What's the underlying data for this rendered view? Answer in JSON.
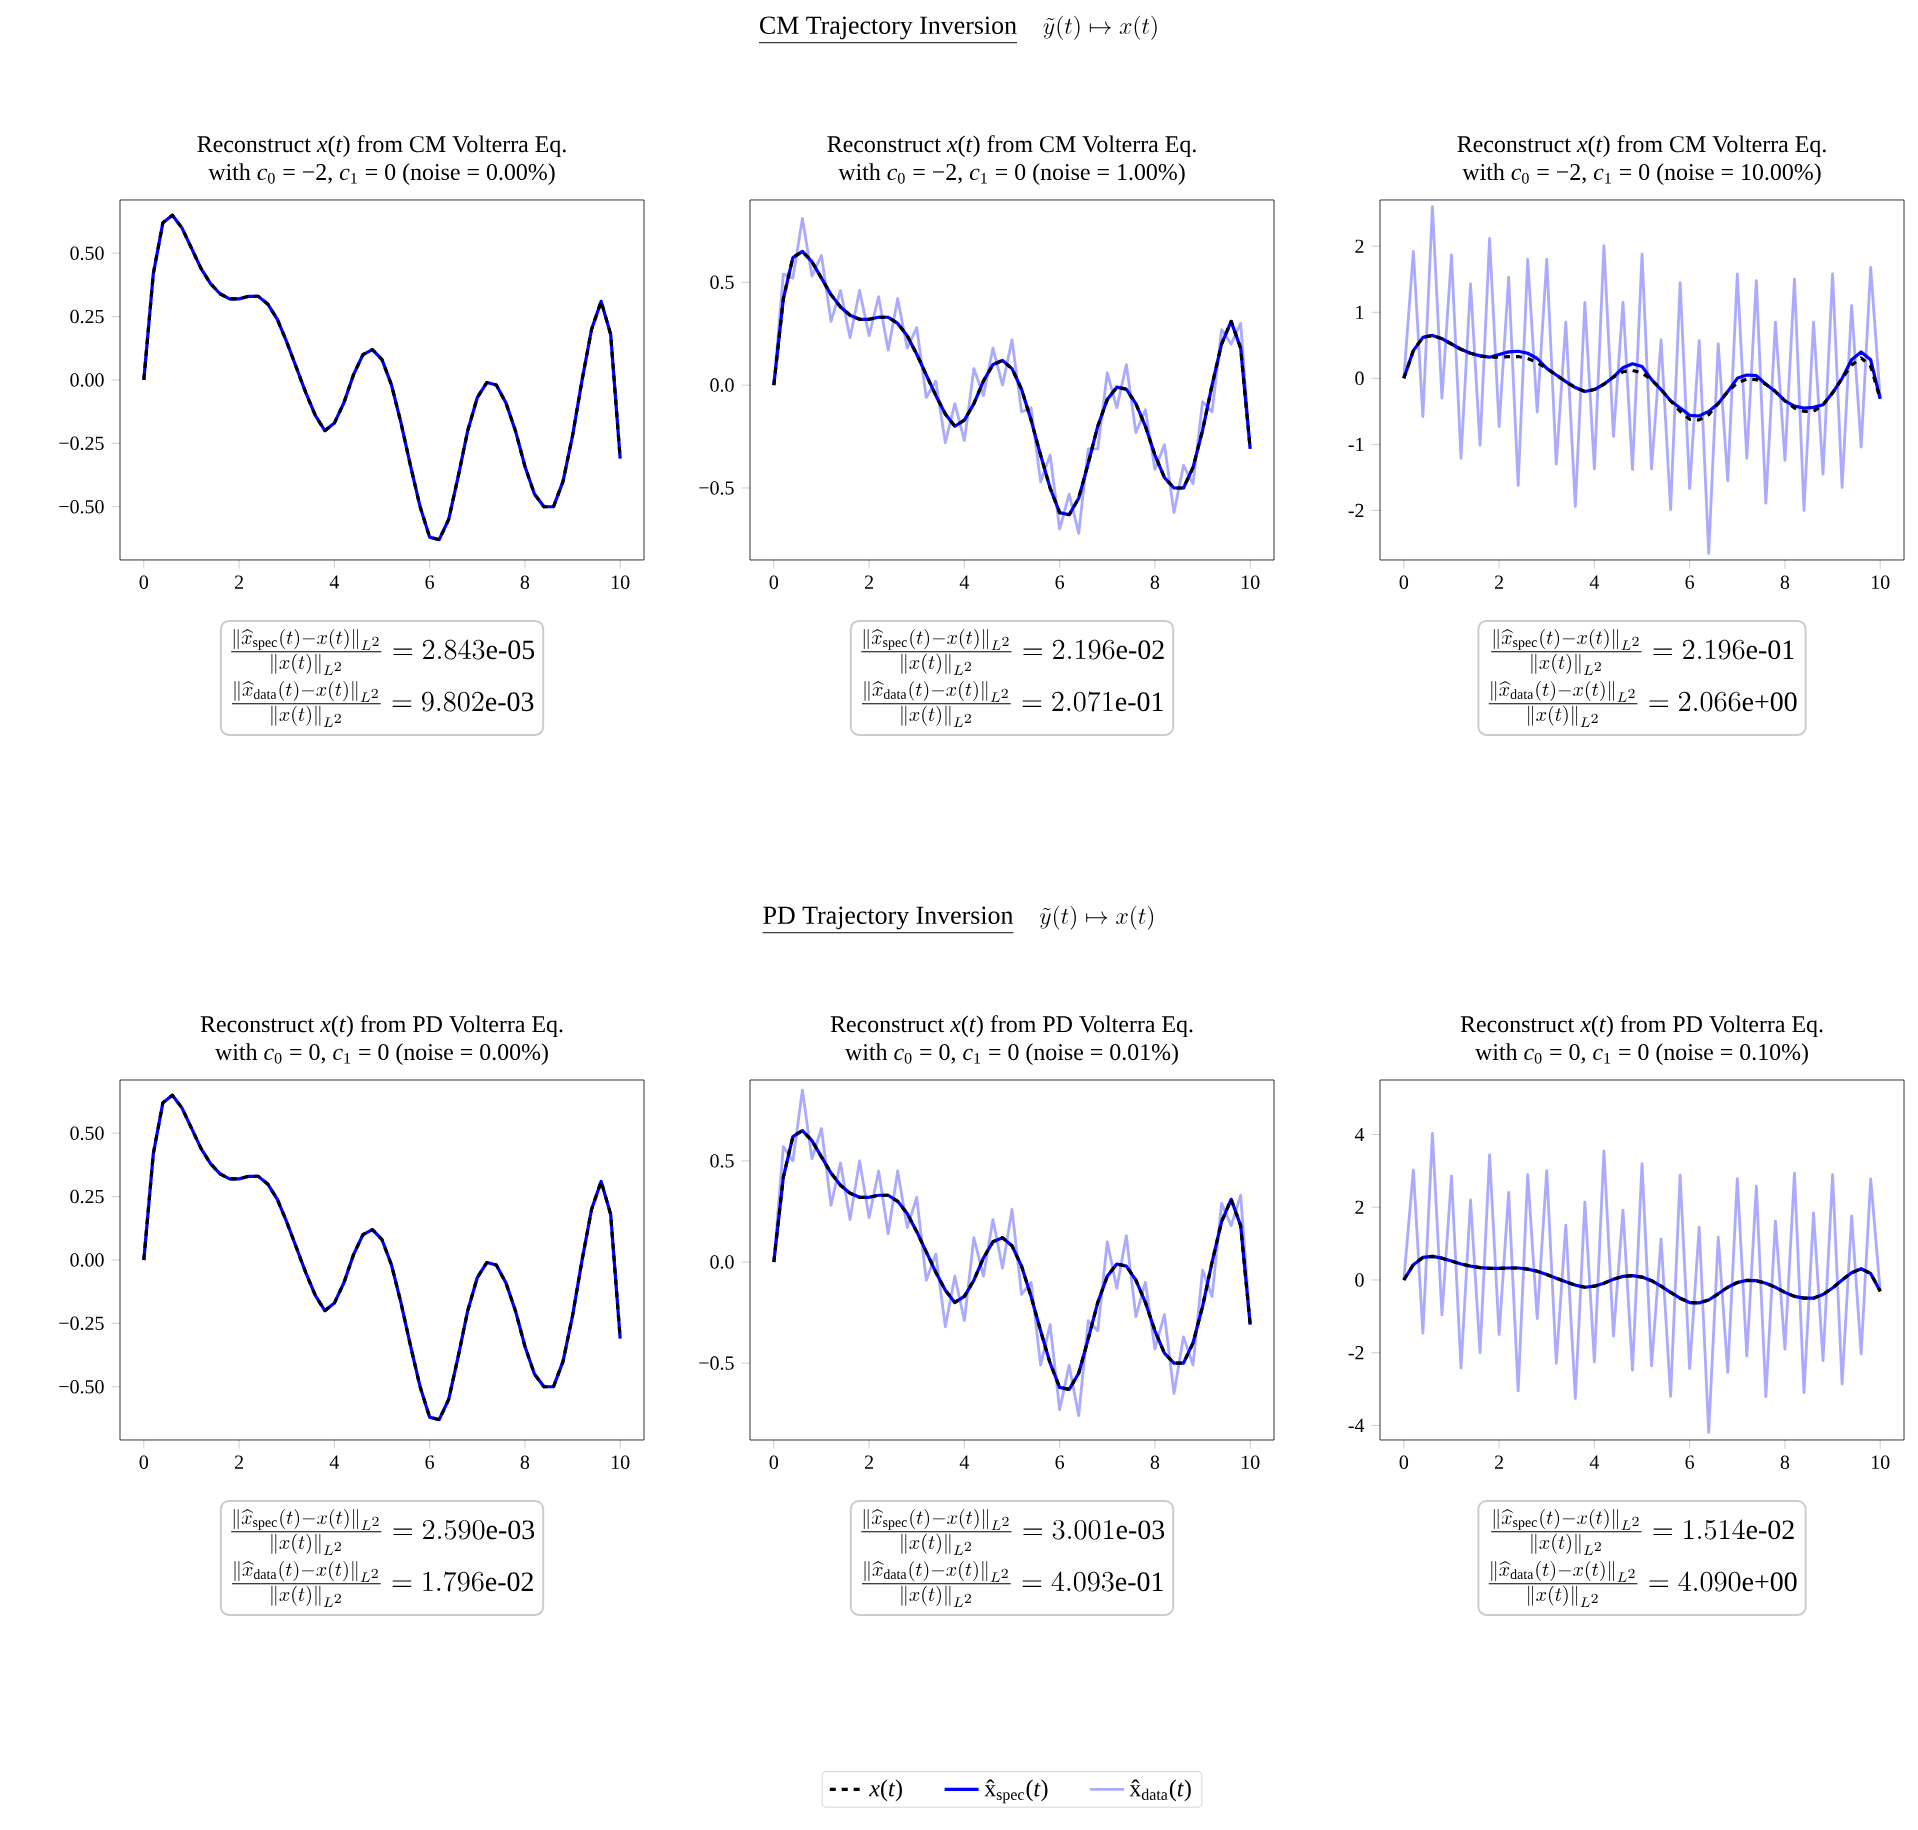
{
  "chart_data": [
    {
      "type": "other",
      "title": "CM Trajectory Inversion",
      "annotations": [
        "\\tilde{y}(t) \\mapsto x(t)"
      ]
    },
    {
      "type": "line",
      "title": "Reconstruct *x*(*t*) from CM Volterra Eq.",
      "subtitle": "with *c*$_{0}$ = −2, *c*$_{1}$ = 0 (noise = 0.00%)",
      "x": [
        0,
        0.2,
        0.4,
        0.6,
        0.8,
        1,
        1.2,
        1.4,
        1.6,
        1.8,
        2,
        2.2,
        2.4,
        2.6,
        2.8,
        3,
        3.2,
        3.4,
        3.6,
        3.8,
        4,
        4.2,
        4.4,
        4.6,
        4.8,
        5,
        5.2,
        5.4,
        5.6,
        5.8,
        6,
        6.2,
        6.4,
        6.6,
        6.8,
        7,
        7.2,
        7.4,
        7.6,
        7.8,
        8,
        8.2,
        8.4,
        8.6,
        8.8,
        9,
        9.2,
        9.4,
        9.6,
        9.8,
        10
      ],
      "series": [
        {
          "color": "#000000",
          "line_style": "dashed",
          "values": [
            0,
            0.42,
            0.62,
            0.65,
            0.6,
            0.52,
            0.44,
            0.38,
            0.34,
            0.32,
            0.32,
            0.33,
            0.33,
            0.3,
            0.24,
            0.15,
            0.05,
            -0.05,
            -0.14,
            -0.2,
            -0.17,
            -0.09,
            0.02,
            0.1,
            0.12,
            0.08,
            -0.02,
            -0.17,
            -0.34,
            -0.5,
            -0.62,
            -0.63,
            -0.55,
            -0.38,
            -0.2,
            -0.07,
            -0.01,
            -0.02,
            -0.09,
            -0.2,
            -0.34,
            -0.45,
            -0.5,
            -0.5,
            -0.4,
            -0.22,
            0,
            0.2,
            0.31,
            0.18,
            -0.31
          ]
        },
        {
          "color": "#0000ff",
          "line_style": "solid",
          "values": [
            0,
            0.42,
            0.62,
            0.65,
            0.6,
            0.52,
            0.44,
            0.38,
            0.34,
            0.32,
            0.32,
            0.33,
            0.33,
            0.3,
            0.24,
            0.15,
            0.05,
            -0.05,
            -0.14,
            -0.2,
            -0.17,
            -0.09,
            0.02,
            0.1,
            0.12,
            0.08,
            -0.02,
            -0.17,
            -0.34,
            -0.5,
            -0.62,
            -0.63,
            -0.55,
            -0.38,
            -0.2,
            -0.07,
            -0.01,
            -0.02,
            -0.09,
            -0.2,
            -0.34,
            -0.45,
            -0.5,
            -0.5,
            -0.4,
            -0.22,
            0,
            0.2,
            0.31,
            0.18,
            -0.31
          ]
        }
      ],
      "xlim": [
        -0.5,
        10.5
      ],
      "ylim": [
        -0.71,
        0.71
      ],
      "xticks": [
        0,
        2,
        4,
        6,
        8,
        10
      ],
      "yticks": [
        {
          "value": -0.5,
          "label": "−0.50"
        },
        {
          "value": -0.25,
          "label": "−0.25"
        },
        {
          "value": 0,
          "label": "0.00"
        },
        {
          "value": 0.25,
          "label": "0.25"
        },
        {
          "value": 0.5,
          "label": "0.50"
        }
      ],
      "annotations": [
        "\\frac{\\|\\widehat{x}_{\\mathrm{spec}}(t)-x(t)\\|_{L^2}}{\\|x(t)\\|_{L^2}} = 2.843\\text{e-05}",
        "\\frac{\\|\\widehat{x}_{\\mathrm{data}}(t)-x(t)\\|_{L^2}}{\\|x(t)\\|_{L^2}} = 9.802\\text{e-03}"
      ]
    },
    {
      "type": "line",
      "title": "Reconstruct *x*(*t*) from CM Volterra Eq.",
      "subtitle": "with *c*$_{0}$ = −2, *c*$_{1}$ = 0 (noise = 1.00%)",
      "x": [
        0,
        0.2,
        0.4,
        0.6,
        0.8,
        1,
        1.2,
        1.4,
        1.6,
        1.8,
        2,
        2.2,
        2.4,
        2.6,
        2.8,
        3,
        3.2,
        3.4,
        3.6,
        3.8,
        4,
        4.2,
        4.4,
        4.6,
        4.8,
        5,
        5.2,
        5.4,
        5.6,
        5.8,
        6,
        6.2,
        6.4,
        6.6,
        6.8,
        7,
        7.2,
        7.4,
        7.6,
        7.8,
        8,
        8.2,
        8.4,
        8.6,
        8.8,
        9,
        9.2,
        9.4,
        9.6,
        9.8,
        10
      ],
      "series": [
        {
          "color": "#000000",
          "line_style": "dashed",
          "values": [
            0,
            0.42,
            0.62,
            0.65,
            0.6,
            0.52,
            0.44,
            0.38,
            0.34,
            0.32,
            0.32,
            0.33,
            0.33,
            0.3,
            0.24,
            0.15,
            0.05,
            -0.05,
            -0.14,
            -0.2,
            -0.17,
            -0.09,
            0.02,
            0.1,
            0.12,
            0.08,
            -0.02,
            -0.17,
            -0.34,
            -0.5,
            -0.62,
            -0.63,
            -0.55,
            -0.38,
            -0.2,
            -0.07,
            -0.01,
            -0.02,
            -0.09,
            -0.2,
            -0.34,
            -0.45,
            -0.5,
            -0.5,
            -0.4,
            -0.22,
            0,
            0.2,
            0.31,
            0.18,
            -0.31
          ]
        },
        {
          "color": "#0000ff",
          "line_style": "solid",
          "values": [
            0,
            0.42,
            0.62,
            0.65,
            0.6,
            0.52,
            0.44,
            0.38,
            0.34,
            0.32,
            0.32,
            0.33,
            0.33,
            0.3,
            0.24,
            0.15,
            0.05,
            -0.05,
            -0.14,
            -0.2,
            -0.17,
            -0.09,
            0.02,
            0.1,
            0.12,
            0.08,
            -0.02,
            -0.17,
            -0.34,
            -0.5,
            -0.62,
            -0.63,
            -0.55,
            -0.38,
            -0.2,
            -0.07,
            -0.01,
            -0.02,
            -0.09,
            -0.2,
            -0.34,
            -0.45,
            -0.5,
            -0.5,
            -0.4,
            -0.22,
            0,
            0.2,
            0.31,
            0.18,
            -0.31
          ]
        },
        {
          "color": "#aaaaff",
          "line_style": "solid",
          "values": [
            0,
            0.54,
            0.52,
            0.81,
            0.53,
            0.63,
            0.31,
            0.46,
            0.23,
            0.46,
            0.24,
            0.43,
            0.17,
            0.42,
            0.18,
            0.28,
            -0.06,
            0.02,
            -0.28,
            -0.09,
            -0.27,
            0.08,
            -0.05,
            0.18,
            0,
            0.22,
            -0.13,
            -0.11,
            -0.47,
            -0.34,
            -0.7,
            -0.53,
            -0.72,
            -0.31,
            -0.31,
            0.06,
            -0.11,
            0.1,
            -0.23,
            -0.12,
            -0.41,
            -0.29,
            -0.62,
            -0.39,
            -0.48,
            -0.08,
            -0.13,
            0.27,
            0.2,
            0.3,
            -0.31
          ]
        }
      ],
      "xlim": [
        -0.5,
        10.5
      ],
      "ylim": [
        -0.85,
        0.9
      ],
      "xticks": [
        0,
        2,
        4,
        6,
        8,
        10
      ],
      "yticks": [
        {
          "value": -0.5,
          "label": "−0.5"
        },
        {
          "value": 0,
          "label": "0.0"
        },
        0.5
      ],
      "annotations": [
        "\\frac{\\|\\widehat{x}_{\\mathrm{spec}}(t)-x(t)\\|_{L^2}}{\\|x(t)\\|_{L^2}} = 2.196\\text{e-02}",
        "\\frac{\\|\\widehat{x}_{\\mathrm{data}}(t)-x(t)\\|_{L^2}}{\\|x(t)\\|_{L^2}} = 2.071\\text{e-01}"
      ]
    },
    {
      "type": "line",
      "title": "Reconstruct *x*(*t*) from CM Volterra Eq.",
      "subtitle": "with *c*$_{0}$ = −2, *c*$_{1}$ = 0 (noise = 10.00%)",
      "x": [
        0,
        0.2,
        0.4,
        0.6,
        0.8,
        1,
        1.2,
        1.4,
        1.6,
        1.8,
        2,
        2.2,
        2.4,
        2.6,
        2.8,
        3,
        3.2,
        3.4,
        3.6,
        3.8,
        4,
        4.2,
        4.4,
        4.6,
        4.8,
        5,
        5.2,
        5.4,
        5.6,
        5.8,
        6,
        6.2,
        6.4,
        6.6,
        6.8,
        7,
        7.2,
        7.4,
        7.6,
        7.8,
        8,
        8.2,
        8.4,
        8.6,
        8.8,
        9,
        9.2,
        9.4,
        9.6,
        9.8,
        10
      ],
      "series": [
        {
          "color": "#000000",
          "line_style": "dashed",
          "values": [
            0,
            0.42,
            0.62,
            0.65,
            0.6,
            0.52,
            0.44,
            0.38,
            0.34,
            0.32,
            0.32,
            0.33,
            0.33,
            0.3,
            0.24,
            0.15,
            0.05,
            -0.05,
            -0.14,
            -0.2,
            -0.17,
            -0.09,
            0.02,
            0.1,
            0.12,
            0.08,
            -0.02,
            -0.17,
            -0.34,
            -0.5,
            -0.62,
            -0.63,
            -0.55,
            -0.38,
            -0.2,
            -0.07,
            -0.01,
            -0.02,
            -0.09,
            -0.2,
            -0.34,
            -0.45,
            -0.5,
            -0.5,
            -0.4,
            -0.22,
            0,
            0.2,
            0.31,
            0.18,
            -0.31
          ]
        },
        {
          "color": "#0000ff",
          "line_style": "solid",
          "values": [
            0,
            0.42,
            0.62,
            0.65,
            0.6,
            0.52,
            0.44,
            0.38,
            0.34,
            0.32,
            0.36,
            0.4,
            0.41,
            0.38,
            0.3,
            0.15,
            0.05,
            -0.05,
            -0.14,
            -0.2,
            -0.17,
            -0.09,
            0.02,
            0.16,
            0.22,
            0.18,
            -0.02,
            -0.17,
            -0.34,
            -0.45,
            -0.56,
            -0.57,
            -0.5,
            -0.38,
            -0.2,
            0,
            0.05,
            0.04,
            -0.09,
            -0.2,
            -0.34,
            -0.42,
            -0.45,
            -0.44,
            -0.4,
            -0.22,
            0,
            0.28,
            0.4,
            0.28,
            -0.31
          ]
        },
        {
          "color": "#aaaaff",
          "line_style": "solid",
          "values": [
            0,
            1.92,
            -0.58,
            2.6,
            -0.3,
            1.87,
            -1.21,
            1.43,
            -1.01,
            2.12,
            -0.73,
            1.53,
            -1.62,
            1.8,
            -0.51,
            1.8,
            -1.3,
            0.85,
            -1.94,
            1.15,
            -1.37,
            2.01,
            -0.88,
            1.15,
            -1.38,
            1.88,
            -1.37,
            0.58,
            -1.99,
            1.45,
            -1.67,
            0.57,
            -2.65,
            0.52,
            -1.55,
            1.58,
            -1.21,
            1.48,
            -1.89,
            0.85,
            -1.24,
            1.5,
            -2,
            0.85,
            -1.45,
            1.58,
            -1.65,
            1.1,
            -1.04,
            1.68,
            -0.31
          ]
        }
      ],
      "xlim": [
        -0.5,
        10.5
      ],
      "ylim": [
        -2.75,
        2.7
      ],
      "xticks": [
        0,
        2,
        4,
        6,
        8,
        10
      ],
      "yticks": [
        -2,
        -1,
        0,
        1,
        2
      ],
      "annotations": [
        "\\frac{\\|\\widehat{x}_{\\mathrm{spec}}(t)-x(t)\\|_{L^2}}{\\|x(t)\\|_{L^2}} = 2.196\\text{e-01}",
        "\\frac{\\|\\widehat{x}_{\\mathrm{data}}(t)-x(t)\\|_{L^2}}{\\|x(t)\\|_{L^2}} = 2.066\\text{e+00}"
      ]
    },
    {
      "type": "other",
      "title": "PD Trajectory Inversion",
      "annotations": [
        "\\tilde{y}(t) \\mapsto x(t)"
      ]
    },
    {
      "type": "line",
      "title": "Reconstruct *x*(*t*) from PD Volterra Eq.",
      "subtitle": "with *c*$_{0}$ = 0, *c*$_{1}$ = 0 (noise = 0.00%)",
      "x": [
        0,
        0.2,
        0.4,
        0.6,
        0.8,
        1,
        1.2,
        1.4,
        1.6,
        1.8,
        2,
        2.2,
        2.4,
        2.6,
        2.8,
        3,
        3.2,
        3.4,
        3.6,
        3.8,
        4,
        4.2,
        4.4,
        4.6,
        4.8,
        5,
        5.2,
        5.4,
        5.6,
        5.8,
        6,
        6.2,
        6.4,
        6.6,
        6.8,
        7,
        7.2,
        7.4,
        7.6,
        7.8,
        8,
        8.2,
        8.4,
        8.6,
        8.8,
        9,
        9.2,
        9.4,
        9.6,
        9.8,
        10
      ],
      "series": [
        {
          "color": "#000000",
          "line_style": "dashed",
          "values": [
            0,
            0.42,
            0.62,
            0.65,
            0.6,
            0.52,
            0.44,
            0.38,
            0.34,
            0.32,
            0.32,
            0.33,
            0.33,
            0.3,
            0.24,
            0.15,
            0.05,
            -0.05,
            -0.14,
            -0.2,
            -0.17,
            -0.09,
            0.02,
            0.1,
            0.12,
            0.08,
            -0.02,
            -0.17,
            -0.34,
            -0.5,
            -0.62,
            -0.63,
            -0.55,
            -0.38,
            -0.2,
            -0.07,
            -0.01,
            -0.02,
            -0.09,
            -0.2,
            -0.34,
            -0.45,
            -0.5,
            -0.5,
            -0.4,
            -0.22,
            0,
            0.2,
            0.31,
            0.18,
            -0.31
          ]
        },
        {
          "color": "#0000ff",
          "line_style": "solid",
          "values": [
            0,
            0.42,
            0.62,
            0.65,
            0.6,
            0.52,
            0.44,
            0.38,
            0.34,
            0.32,
            0.32,
            0.33,
            0.33,
            0.3,
            0.24,
            0.15,
            0.05,
            -0.05,
            -0.14,
            -0.2,
            -0.17,
            -0.09,
            0.02,
            0.1,
            0.12,
            0.08,
            -0.02,
            -0.17,
            -0.34,
            -0.5,
            -0.62,
            -0.63,
            -0.55,
            -0.38,
            -0.2,
            -0.07,
            -0.01,
            -0.02,
            -0.09,
            -0.2,
            -0.34,
            -0.45,
            -0.5,
            -0.5,
            -0.4,
            -0.22,
            0,
            0.2,
            0.31,
            0.18,
            -0.31
          ]
        }
      ],
      "xlim": [
        -0.5,
        10.5
      ],
      "ylim": [
        -0.71,
        0.71
      ],
      "xticks": [
        0,
        2,
        4,
        6,
        8,
        10
      ],
      "yticks": [
        {
          "value": -0.5,
          "label": "−0.50"
        },
        {
          "value": -0.25,
          "label": "−0.25"
        },
        {
          "value": 0,
          "label": "0.00"
        },
        {
          "value": 0.25,
          "label": "0.25"
        },
        {
          "value": 0.5,
          "label": "0.50"
        }
      ],
      "annotations": [
        "\\frac{\\|\\widehat{x}_{\\mathrm{spec}}(t)-x(t)\\|_{L^2}}{\\|x(t)\\|_{L^2}} = 2.590\\text{e-03}",
        "\\frac{\\|\\widehat{x}_{\\mathrm{data}}(t)-x(t)\\|_{L^2}}{\\|x(t)\\|_{L^2}} = 1.796\\text{e-02}"
      ]
    },
    {
      "type": "line",
      "title": "Reconstruct *x*(*t*) from PD Volterra Eq.",
      "subtitle": "with *c*$_{0}$ = 0, *c*$_{1}$ = 0 (noise = 0.01%)",
      "legend": "bottom",
      "x": [
        0,
        0.2,
        0.4,
        0.6,
        0.8,
        1,
        1.2,
        1.4,
        1.6,
        1.8,
        2,
        2.2,
        2.4,
        2.6,
        2.8,
        3,
        3.2,
        3.4,
        3.6,
        3.8,
        4,
        4.2,
        4.4,
        4.6,
        4.8,
        5,
        5.2,
        5.4,
        5.6,
        5.8,
        6,
        6.2,
        6.4,
        6.6,
        6.8,
        7,
        7.2,
        7.4,
        7.6,
        7.8,
        8,
        8.2,
        8.4,
        8.6,
        8.8,
        9,
        9.2,
        9.4,
        9.6,
        9.8,
        10
      ],
      "series": [
        {
          "name": "*x*(*t*)",
          "color": "#000000",
          "line_style": "dashed",
          "values": [
            0,
            0.42,
            0.62,
            0.65,
            0.6,
            0.52,
            0.44,
            0.38,
            0.34,
            0.32,
            0.32,
            0.33,
            0.33,
            0.3,
            0.24,
            0.15,
            0.05,
            -0.05,
            -0.14,
            -0.2,
            -0.17,
            -0.09,
            0.02,
            0.1,
            0.12,
            0.08,
            -0.02,
            -0.17,
            -0.34,
            -0.5,
            -0.62,
            -0.63,
            -0.55,
            -0.38,
            -0.2,
            -0.07,
            -0.01,
            -0.02,
            -0.09,
            -0.2,
            -0.34,
            -0.45,
            -0.5,
            -0.5,
            -0.4,
            -0.22,
            0,
            0.2,
            0.31,
            0.18,
            -0.31
          ]
        },
        {
          "name": "x̂$_{spec}$(*t*)",
          "color": "#0000ff",
          "line_style": "solid",
          "values": [
            0,
            0.42,
            0.62,
            0.65,
            0.6,
            0.52,
            0.44,
            0.38,
            0.34,
            0.32,
            0.32,
            0.33,
            0.33,
            0.3,
            0.24,
            0.15,
            0.05,
            -0.05,
            -0.14,
            -0.2,
            -0.17,
            -0.09,
            0.02,
            0.1,
            0.12,
            0.08,
            -0.02,
            -0.17,
            -0.34,
            -0.5,
            -0.62,
            -0.63,
            -0.55,
            -0.38,
            -0.2,
            -0.07,
            -0.01,
            -0.02,
            -0.09,
            -0.2,
            -0.34,
            -0.45,
            -0.5,
            -0.5,
            -0.4,
            -0.22,
            0,
            0.2,
            0.31,
            0.18,
            -0.31
          ]
        },
        {
          "name": "x̂$_{data}$(*t*)",
          "color": "#aaaaff",
          "line_style": "solid",
          "values": [
            0,
            0.57,
            0.5,
            0.85,
            0.51,
            0.66,
            0.28,
            0.49,
            0.21,
            0.5,
            0.22,
            0.45,
            0.14,
            0.45,
            0.17,
            0.32,
            -0.09,
            0.04,
            -0.32,
            -0.07,
            -0.29,
            0.12,
            -0.07,
            0.21,
            -0.03,
            0.26,
            -0.16,
            -0.1,
            -0.51,
            -0.31,
            -0.73,
            -0.51,
            -0.76,
            -0.29,
            -0.34,
            0.1,
            -0.13,
            0.13,
            -0.27,
            -0.1,
            -0.43,
            -0.26,
            -0.65,
            -0.37,
            -0.51,
            -0.04,
            -0.17,
            0.29,
            0.18,
            0.33,
            -0.31
          ]
        }
      ],
      "xlim": [
        -0.5,
        10.5
      ],
      "ylim": [
        -0.88,
        0.9
      ],
      "xticks": [
        0,
        2,
        4,
        6,
        8,
        10
      ],
      "yticks": [
        {
          "value": -0.5,
          "label": "−0.5"
        },
        {
          "value": 0,
          "label": "0.0"
        },
        0.5
      ],
      "annotations": [
        "\\frac{\\|\\widehat{x}_{\\mathrm{spec}}(t)-x(t)\\|_{L^2}}{\\|x(t)\\|_{L^2}} = 3.001\\text{e-03}",
        "\\frac{\\|\\widehat{x}_{\\mathrm{data}}(t)-x(t)\\|_{L^2}}{\\|x(t)\\|_{L^2}} = 4.093\\text{e-01}"
      ]
    },
    {
      "type": "line",
      "title": "Reconstruct *x*(*t*) from PD Volterra Eq.",
      "subtitle": "with *c*$_{0}$ = 0, *c*$_{1}$ = 0 (noise = 0.10%)",
      "x": [
        0,
        0.2,
        0.4,
        0.6,
        0.8,
        1,
        1.2,
        1.4,
        1.6,
        1.8,
        2,
        2.2,
        2.4,
        2.6,
        2.8,
        3,
        3.2,
        3.4,
        3.6,
        3.8,
        4,
        4.2,
        4.4,
        4.6,
        4.8,
        5,
        5.2,
        5.4,
        5.6,
        5.8,
        6,
        6.2,
        6.4,
        6.6,
        6.8,
        7,
        7.2,
        7.4,
        7.6,
        7.8,
        8,
        8.2,
        8.4,
        8.6,
        8.8,
        9,
        9.2,
        9.4,
        9.6,
        9.8,
        10
      ],
      "series": [
        {
          "color": "#000000",
          "line_style": "dashed",
          "values": [
            0,
            0.42,
            0.62,
            0.65,
            0.6,
            0.52,
            0.44,
            0.38,
            0.34,
            0.32,
            0.32,
            0.33,
            0.33,
            0.3,
            0.24,
            0.15,
            0.05,
            -0.05,
            -0.14,
            -0.2,
            -0.17,
            -0.09,
            0.02,
            0.1,
            0.12,
            0.08,
            -0.02,
            -0.17,
            -0.34,
            -0.5,
            -0.62,
            -0.63,
            -0.55,
            -0.38,
            -0.2,
            -0.07,
            -0.01,
            -0.02,
            -0.09,
            -0.2,
            -0.34,
            -0.45,
            -0.5,
            -0.5,
            -0.4,
            -0.22,
            0,
            0.2,
            0.31,
            0.18,
            -0.31
          ]
        },
        {
          "color": "#0000ff",
          "line_style": "solid",
          "values": [
            0,
            0.42,
            0.62,
            0.65,
            0.6,
            0.52,
            0.44,
            0.38,
            0.34,
            0.32,
            0.32,
            0.33,
            0.33,
            0.3,
            0.24,
            0.15,
            0.05,
            -0.05,
            -0.14,
            -0.2,
            -0.17,
            -0.09,
            0.02,
            0.1,
            0.12,
            0.08,
            -0.02,
            -0.17,
            -0.34,
            -0.5,
            -0.62,
            -0.63,
            -0.55,
            -0.38,
            -0.2,
            -0.07,
            -0.01,
            -0.02,
            -0.09,
            -0.2,
            -0.34,
            -0.45,
            -0.5,
            -0.5,
            -0.4,
            -0.22,
            0,
            0.2,
            0.31,
            0.18,
            -0.31
          ]
        },
        {
          "color": "#aaaaff",
          "line_style": "solid",
          "values": [
            0,
            3.02,
            -1.46,
            4.03,
            -0.96,
            2.86,
            -2.42,
            2.2,
            -2,
            3.44,
            -1.5,
            2.41,
            -3.05,
            2.9,
            -1.06,
            3.01,
            -2.29,
            1.51,
            -3.26,
            2.14,
            -2.25,
            3.55,
            -1.54,
            1.92,
            -2.48,
            3.2,
            -2.36,
            1.13,
            -3.2,
            2.88,
            -2.44,
            1.45,
            -4.19,
            1.18,
            -2.54,
            2.79,
            -2.09,
            2.58,
            -3.21,
            1.62,
            -1.9,
            2.93,
            -3.1,
            1.84,
            -2.22,
            2.9,
            -2.86,
            1.76,
            -2.03,
            2.78,
            -0.31
          ]
        }
      ],
      "xlim": [
        -0.5,
        10.5
      ],
      "ylim": [
        -4.4,
        5.5
      ],
      "xticks": [
        0,
        2,
        4,
        6,
        8,
        10
      ],
      "yticks": [
        -4,
        -2,
        0,
        2,
        4
      ],
      "annotations": [
        "\\frac{\\|\\widehat{x}_{\\mathrm{spec}}(t)-x(t)\\|_{L^2}}{\\|x(t)\\|_{L^2}} = 1.514\\text{e-02}",
        "\\frac{\\|\\widehat{x}_{\\mathrm{data}}(t)-x(t)\\|_{L^2}}{\\|x(t)\\|_{L^2}} = 4.090\\text{e+00}"
      ]
    }
  ]
}
